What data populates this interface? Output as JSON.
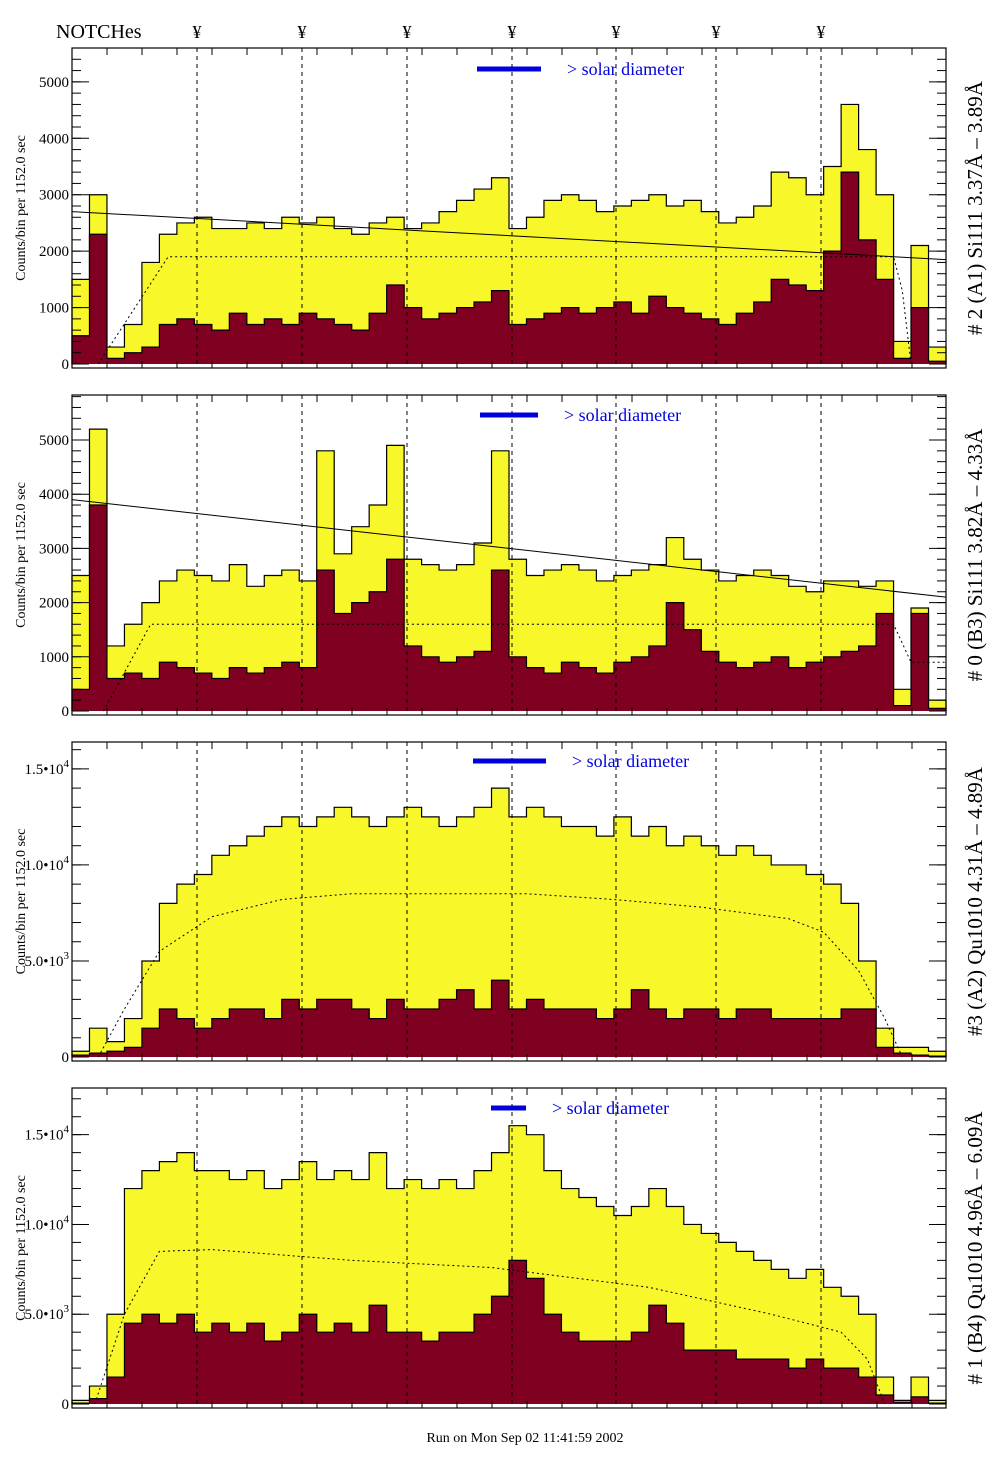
{
  "header": {
    "notches_label": "NOTCHes",
    "notch_symbol": "¥",
    "notch_count": 7
  },
  "footer": {
    "run_text": "Run on Mon Sep 02 11:41:59 2002"
  },
  "colors": {
    "total": "#f7f72a",
    "component": "#7f0020",
    "marker": "#0000dd",
    "axis": "#000000"
  },
  "chart_data": [
    {
      "type": "bar",
      "ylabel": "Counts/bin per   1152.0 sec",
      "side_label": "# 2 (A1) Si111  3.37Å – 3.89Å",
      "annotation": "> solar diameter",
      "ylim": [
        0,
        5600
      ],
      "yticks": [
        {
          "v": 0,
          "t": "0"
        },
        {
          "v": 1000,
          "t": "1000"
        },
        {
          "v": 2000,
          "t": "2000"
        },
        {
          "v": 3000,
          "t": "3000"
        },
        {
          "v": 4000,
          "t": "4000"
        },
        {
          "v": 5000,
          "t": "5000"
        }
      ],
      "minor_step": 200,
      "series": [
        {
          "values": [
            1500,
            3000,
            300,
            700,
            1800,
            2300,
            2500,
            2600,
            2400,
            2400,
            2500,
            2400,
            2600,
            2500,
            2600,
            2400,
            2300,
            2500,
            2600,
            2400,
            2500,
            2700,
            2900,
            3100,
            3300,
            2400,
            2600,
            2900,
            3000,
            2900,
            2700,
            2800,
            2900,
            3000,
            2800,
            2900,
            2700,
            2500,
            2600,
            2800,
            3400,
            3300,
            3000,
            3500,
            4600,
            3800,
            3000,
            400,
            2100,
            300
          ]
        },
        {
          "values": [
            500,
            2300,
            100,
            200,
            300,
            700,
            800,
            700,
            600,
            900,
            700,
            800,
            700,
            900,
            800,
            700,
            600,
            900,
            1400,
            1000,
            800,
            900,
            1000,
            1100,
            1300,
            700,
            800,
            900,
            1000,
            900,
            1000,
            1100,
            900,
            1200,
            1000,
            900,
            800,
            700,
            900,
            1100,
            1500,
            1400,
            1300,
            2000,
            3400,
            2200,
            1500,
            100,
            1000,
            50
          ]
        }
      ],
      "trend_line": [
        [
          0,
          2700
        ],
        [
          50,
          1850
        ]
      ],
      "dotted_curve": [
        [
          1.5,
          0
        ],
        [
          5.5,
          1900
        ],
        [
          47,
          1900
        ],
        [
          47.5,
          1300
        ],
        [
          48,
          0
        ]
      ]
    },
    {
      "type": "bar",
      "ylabel": "Counts/bin per   1152.0 sec",
      "side_label": "# 0 (B3) Si111  3.82Å – 4.33Å",
      "annotation": "> solar diameter",
      "ylim": [
        0,
        5830
      ],
      "yticks": [
        {
          "v": 0,
          "t": "0"
        },
        {
          "v": 1000,
          "t": "1000"
        },
        {
          "v": 2000,
          "t": "2000"
        },
        {
          "v": 3000,
          "t": "3000"
        },
        {
          "v": 4000,
          "t": "4000"
        },
        {
          "v": 5000,
          "t": "5000"
        }
      ],
      "minor_step": 200,
      "series": [
        {
          "values": [
            2500,
            5200,
            1200,
            1600,
            2000,
            2400,
            2600,
            2500,
            2400,
            2700,
            2300,
            2500,
            2600,
            2400,
            4800,
            2900,
            3400,
            3800,
            4900,
            2800,
            2700,
            2600,
            2700,
            3100,
            4800,
            2800,
            2500,
            2600,
            2700,
            2600,
            2400,
            2500,
            2600,
            2700,
            3200,
            2800,
            2600,
            2400,
            2500,
            2600,
            2500,
            2300,
            2200,
            2400,
            2400,
            2300,
            2400,
            400,
            1900,
            200
          ]
        },
        {
          "values": [
            400,
            3800,
            600,
            700,
            600,
            900,
            800,
            700,
            600,
            800,
            700,
            800,
            900,
            800,
            2600,
            1800,
            2000,
            2200,
            2800,
            1200,
            1000,
            900,
            1000,
            1100,
            2600,
            1000,
            800,
            700,
            900,
            800,
            700,
            900,
            1000,
            1200,
            2000,
            1500,
            1100,
            900,
            800,
            900,
            1000,
            800,
            900,
            1000,
            1100,
            1200,
            1800,
            100,
            1800,
            50
          ]
        }
      ],
      "trend_line": [
        [
          0,
          3900
        ],
        [
          50,
          2100
        ]
      ],
      "dotted_curve": [
        [
          1.8,
          0
        ],
        [
          4.5,
          1600
        ],
        [
          47,
          1600
        ],
        [
          48,
          900
        ],
        [
          50,
          900
        ]
      ]
    },
    {
      "type": "bar",
      "ylabel": "Counts/bin per   1152.0 sec",
      "side_label": "#3 (A2) Qu1010  4.31Å – 4.89Å",
      "annotation": "> solar diameter",
      "ylim": [
        0,
        16400
      ],
      "yticks": [
        {
          "v": 0,
          "t": "0"
        },
        {
          "v": 5000,
          "t": "5.0•10",
          "e": "3"
        },
        {
          "v": 10000,
          "t": "1.0•10",
          "e": "4"
        },
        {
          "v": 15000,
          "t": "1.5•10",
          "e": "4"
        }
      ],
      "minor_step": 1000,
      "series": [
        {
          "values": [
            300,
            1500,
            800,
            2000,
            5000,
            8000,
            9000,
            9500,
            10500,
            11000,
            11500,
            12000,
            12500,
            12000,
            12500,
            13000,
            12500,
            12000,
            12500,
            13000,
            12500,
            12000,
            12500,
            13000,
            14000,
            12500,
            13000,
            12500,
            12000,
            12000,
            11500,
            12500,
            11500,
            12000,
            11000,
            11500,
            11000,
            10500,
            11000,
            10500,
            10000,
            10000,
            9500,
            9000,
            8000,
            5000,
            1500,
            500,
            500,
            300
          ]
        },
        {
          "values": [
            100,
            200,
            300,
            500,
            1500,
            2500,
            2000,
            1500,
            2000,
            2500,
            2500,
            2000,
            3000,
            2500,
            3000,
            3000,
            2500,
            2000,
            3000,
            2500,
            2500,
            3000,
            3500,
            2500,
            4000,
            2500,
            3000,
            2500,
            2500,
            2500,
            2000,
            2500,
            3500,
            2500,
            2000,
            2500,
            2500,
            2000,
            2500,
            2500,
            2000,
            2000,
            2000,
            2000,
            2500,
            2500,
            500,
            200,
            100,
            50
          ]
        }
      ],
      "dotted_curve": [
        [
          1.5,
          0
        ],
        [
          3,
          2500
        ],
        [
          5,
          5500
        ],
        [
          8,
          7300
        ],
        [
          12,
          8200
        ],
        [
          16,
          8500
        ],
        [
          26,
          8500
        ],
        [
          31,
          8200
        ],
        [
          36,
          7800
        ],
        [
          41,
          7200
        ],
        [
          43,
          6500
        ],
        [
          45,
          4500
        ],
        [
          46.5,
          2000
        ],
        [
          47.5,
          0
        ]
      ]
    },
    {
      "type": "bar",
      "ylabel": "Counts/bin per   1152.0 sec",
      "side_label": "# 1 (B4) Qu1010 4.96Å – 6.09Å",
      "annotation": "> solar diameter",
      "ylim": [
        0,
        17600
      ],
      "yticks": [
        {
          "v": 0,
          "t": "0"
        },
        {
          "v": 5000,
          "t": "5.0•10",
          "e": "3"
        },
        {
          "v": 10000,
          "t": "1.0•10",
          "e": "4"
        },
        {
          "v": 15000,
          "t": "1.5•10",
          "e": "4"
        }
      ],
      "minor_step": 1000,
      "series": [
        {
          "values": [
            200,
            1000,
            5000,
            12000,
            13000,
            13500,
            14000,
            13000,
            13000,
            12500,
            13000,
            12000,
            12500,
            13500,
            12500,
            13000,
            12500,
            14000,
            12000,
            12500,
            12000,
            12500,
            12000,
            13000,
            14000,
            15500,
            15000,
            13000,
            12000,
            11500,
            11000,
            10500,
            11000,
            12000,
            11000,
            10000,
            9500,
            9000,
            8500,
            8000,
            7500,
            7000,
            7500,
            6500,
            6000,
            5000,
            1500,
            200,
            1500,
            200
          ]
        },
        {
          "values": [
            50,
            300,
            1500,
            4500,
            5000,
            4500,
            5000,
            4000,
            4500,
            4000,
            4500,
            3500,
            4000,
            5000,
            4000,
            4500,
            4000,
            5500,
            4000,
            4000,
            3500,
            4000,
            4000,
            5000,
            6000,
            8000,
            7000,
            5000,
            4000,
            3500,
            3500,
            3500,
            4000,
            5500,
            4500,
            3000,
            3000,
            3000,
            2500,
            2500,
            2500,
            2000,
            2500,
            2000,
            2000,
            1500,
            500,
            100,
            400,
            50
          ]
        }
      ],
      "dotted_curve": [
        [
          1.3,
          0
        ],
        [
          3,
          5000
        ],
        [
          5,
          8500
        ],
        [
          8,
          8600
        ],
        [
          16,
          8000
        ],
        [
          24,
          7600
        ],
        [
          33,
          6500
        ],
        [
          40,
          5000
        ],
        [
          44,
          4000
        ],
        [
          45.5,
          2500
        ],
        [
          46.5,
          0
        ]
      ]
    }
  ]
}
